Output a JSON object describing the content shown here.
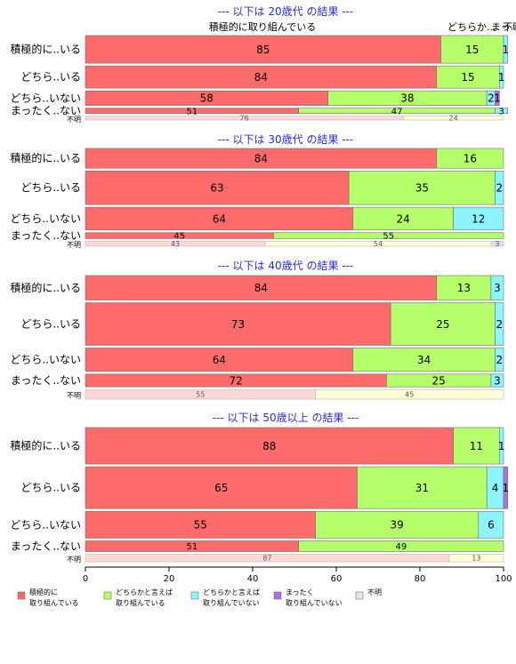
{
  "chart_data": {
    "type": "bar",
    "orientation": "horizontal",
    "stacked": true,
    "xlim": [
      0,
      100
    ],
    "x_ticks": [
      "0",
      "20",
      "40",
      "60",
      "80",
      "100"
    ],
    "top_labels": [
      "積極的に取り組んでいる",
      "どちらか...",
      "まっ...",
      "不明"
    ],
    "series": [
      {
        "name": "積極的に\n取り組んでいる",
        "color": "#ff6a6a"
      },
      {
        "name": "どちらかと言えば\n取り組んでいる",
        "color": "#b4ff6a"
      },
      {
        "name": "どちらかと言えば\n取り組んでいない",
        "color": "#8cf5ff"
      },
      {
        "name": "まったく\n取り組んでいない",
        "color": "#a772e8"
      },
      {
        "name": "不明",
        "color": "#e6e6e6"
      }
    ],
    "panels": [
      {
        "title": "--- 以下は 20歳代 の結果 ---",
        "rows": [
          {
            "label": "積極的に..いる",
            "values": [
              85,
              15,
              1,
              0,
              0
            ],
            "weight": 3.6
          },
          {
            "label": "どちら..いる",
            "values": [
              84,
              15,
              1,
              0,
              0
            ],
            "weight": 2.9
          },
          {
            "label": "どちら..いない",
            "values": [
              58,
              38,
              2,
              1,
              0
            ],
            "weight": 1.9
          },
          {
            "label": "まったく..ない",
            "values": [
              51,
              47,
              3,
              0,
              0
            ],
            "weight": 0.7
          },
          {
            "label": "不明",
            "values": [
              76,
              24,
              0,
              0,
              0
            ],
            "weight": 0.5,
            "faded": true
          }
        ]
      },
      {
        "title": "--- 以下は 30歳代 の結果 ---",
        "rows": [
          {
            "label": "積極的に..いる",
            "values": [
              84,
              16,
              0,
              0,
              0
            ],
            "weight": 2.0
          },
          {
            "label": "どちら..いる",
            "values": [
              63,
              35,
              2,
              0,
              0
            ],
            "weight": 3.4
          },
          {
            "label": "どちら..いない",
            "values": [
              64,
              24,
              12,
              0,
              0
            ],
            "weight": 2.3
          },
          {
            "label": "まったく..ない",
            "values": [
              45,
              55,
              0,
              0,
              0
            ],
            "weight": 0.6
          },
          {
            "label": "不明",
            "values": [
              43,
              54,
              0,
              3,
              0
            ],
            "weight": 0.5,
            "faded": true
          }
        ]
      },
      {
        "title": "--- 以下は 40歳代 の結果 ---",
        "rows": [
          {
            "label": "積極的に..いる",
            "values": [
              84,
              13,
              3,
              0,
              0
            ],
            "weight": 2.3
          },
          {
            "label": "どちら..いる",
            "values": [
              73,
              25,
              2,
              0,
              0
            ],
            "weight": 4.0
          },
          {
            "label": "どちら..いない",
            "values": [
              64,
              34,
              2,
              0,
              0
            ],
            "weight": 2.2
          },
          {
            "label": "まったく..ない",
            "values": [
              72,
              25,
              3,
              0,
              0
            ],
            "weight": 1.2
          },
          {
            "label": "不明",
            "values": [
              55,
              45,
              0,
              0,
              0
            ],
            "weight": 0.9,
            "faded": true
          }
        ]
      },
      {
        "title": "--- 以下は 50歳以上 の結果 ---",
        "rows": [
          {
            "label": "積極的に..いる",
            "values": [
              88,
              11,
              1,
              0,
              0
            ],
            "weight": 3.4
          },
          {
            "label": "どちら..いる",
            "values": [
              65,
              31,
              4,
              1,
              0
            ],
            "weight": 3.9
          },
          {
            "label": "どちら..いない",
            "values": [
              55,
              39,
              6,
              0,
              0
            ],
            "weight": 2.5
          },
          {
            "label": "まったく..ない",
            "values": [
              51,
              49,
              0,
              0,
              0
            ],
            "weight": 1.0
          },
          {
            "label": "不明",
            "values": [
              87,
              13,
              0,
              0,
              0
            ],
            "weight": 0.7,
            "faded": true
          }
        ]
      }
    ]
  }
}
